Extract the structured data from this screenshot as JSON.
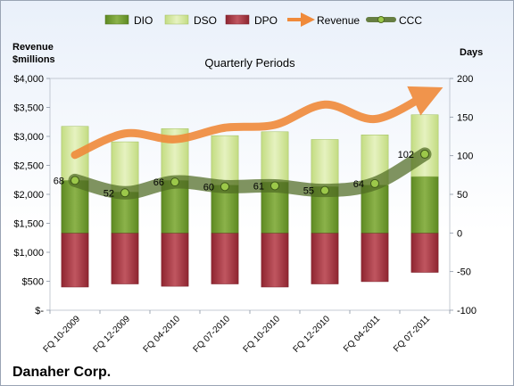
{
  "chart_data": {
    "type": "bar",
    "title": "Quarterly Periods",
    "company": "Danaher Corp.",
    "left_axis_label": "Revenue\n$millions",
    "right_axis_label": "Days",
    "left_axis": {
      "min": 0,
      "max": 4000,
      "ticks": [
        "$-",
        "$500",
        "$1,000",
        "$1,500",
        "$2,000",
        "$2,500",
        "$3,000",
        "$3,500",
        "$4,000"
      ]
    },
    "right_axis": {
      "min": -100,
      "max": 200,
      "ticks": [
        "-100",
        "-50",
        "0",
        "50",
        "100",
        "150",
        "200"
      ]
    },
    "categories": [
      "FQ 10-2009",
      "FQ 12-2009",
      "FQ 04-2010",
      "FQ 07-2010",
      "FQ 10-2010",
      "FQ 12-2010",
      "FQ 04-2011",
      "FQ 07-2011"
    ],
    "legend": [
      {
        "name": "DIO",
        "color": "#6f9a2e"
      },
      {
        "name": "DSO",
        "color": "#d6e9a0"
      },
      {
        "name": "DPO",
        "color": "#a8333c"
      },
      {
        "name": "Revenue",
        "color": "#f08a3a"
      },
      {
        "name": "CCC",
        "color": "#4f6b22"
      }
    ],
    "series": [
      {
        "name": "DIO",
        "axis": "days",
        "values": [
          68,
          53,
          68,
          62,
          66,
          60,
          62,
          73
        ]
      },
      {
        "name": "DSO",
        "axis": "days",
        "values": [
          70,
          65,
          67,
          64,
          65,
          61,
          65,
          80
        ]
      },
      {
        "name": "DPO",
        "axis": "days",
        "values": [
          -70,
          -66,
          -69,
          -66,
          -70,
          -66,
          -63,
          -51
        ]
      },
      {
        "name": "Revenue",
        "axis": "revenue",
        "values": [
          2680,
          3050,
          2950,
          3150,
          3200,
          3550,
          3300,
          3700
        ]
      },
      {
        "name": "CCC",
        "axis": "days",
        "values": [
          68,
          52,
          66,
          60,
          61,
          55,
          64,
          102
        ]
      }
    ],
    "data_labels": [
      "68",
      "52",
      "66",
      "60",
      "61",
      "55",
      "64",
      "102"
    ],
    "grid": false,
    "legend_position": "top"
  }
}
